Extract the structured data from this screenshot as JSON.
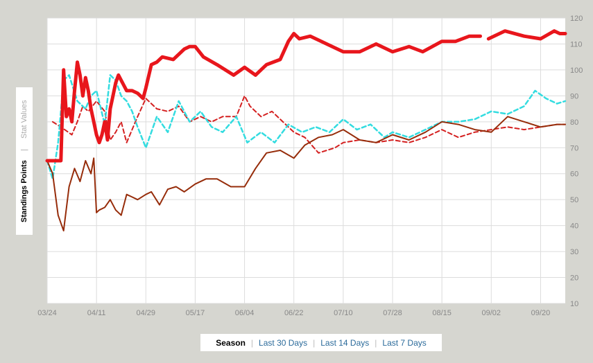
{
  "chart_data": {
    "type": "line",
    "title": "",
    "xlabel": "",
    "ylabel": "Standings Points",
    "ylabel_alt": "Stat Values",
    "ylabel_separator": "|",
    "ylim": [
      10,
      120
    ],
    "yticks": [
      "120",
      "110",
      "100",
      "90",
      "80",
      "70",
      "60",
      "50",
      "40",
      "30",
      "20",
      "10"
    ],
    "xticks": [
      "03/24",
      "04/11",
      "04/29",
      "05/17",
      "06/04",
      "06/22",
      "07/10",
      "07/28",
      "08/15",
      "09/02",
      "09/20"
    ],
    "grid": true,
    "y_axis_side": "right",
    "colors": {
      "thick_red": "#e8161c",
      "dashed_red": "#d42020",
      "dashed_cyan": "#33dce0",
      "brown": "#962c0a"
    },
    "series": [
      {
        "style": "thick_red",
        "x": [
          "03/24",
          "03/29",
          "03/30",
          "03/31",
          "04/01",
          "04/02",
          "04/03",
          "04/04",
          "04/05",
          "04/06",
          "04/07",
          "04/08",
          "04/09",
          "04/10",
          "04/11",
          "04/12",
          "04/13",
          "04/14",
          "04/15",
          "04/16",
          "04/17",
          "04/18",
          "04/19",
          "04/20",
          "04/22",
          "04/24",
          "04/26",
          "04/28",
          "04/29",
          "05/01",
          "05/03",
          "05/05",
          "05/09",
          "05/13",
          "05/15",
          "05/17",
          "05/20",
          "05/25",
          "05/31",
          "06/04",
          "06/08",
          "06/12",
          "06/17",
          "06/20",
          "06/22",
          "06/24",
          "06/28",
          "07/04",
          "07/10",
          "07/16",
          "07/22",
          "07/28",
          "08/03",
          "08/08",
          "08/15",
          "08/20",
          "08/25",
          "08/29",
          "08/30",
          "09/01",
          "09/07",
          "09/14",
          "09/20",
          "09/25",
          "09/27",
          "09/29"
        ],
        "y": [
          65,
          65,
          100,
          82,
          85,
          80,
          92,
          103,
          98,
          90,
          97,
          92,
          85,
          80,
          75,
          72,
          75,
          80,
          73,
          85,
          90,
          95,
          98,
          96,
          92,
          92,
          91,
          89,
          93,
          102,
          103,
          105,
          104,
          108,
          109,
          109,
          105,
          102,
          98,
          101,
          98,
          102,
          104,
          111,
          114,
          112,
          113,
          110,
          107,
          107,
          110,
          107,
          109,
          107,
          111,
          111,
          113,
          113,
          null,
          112,
          115,
          113,
          112,
          115,
          114,
          114
        ]
      },
      {
        "style": "dashed_red",
        "x": [
          "03/26",
          "03/29",
          "04/02",
          "04/04",
          "04/06",
          "04/08",
          "04/11",
          "04/14",
          "04/16",
          "04/18",
          "04/20",
          "04/22",
          "04/26",
          "04/29",
          "05/03",
          "05/07",
          "05/11",
          "05/15",
          "05/19",
          "05/23",
          "05/27",
          "06/01",
          "06/04",
          "06/06",
          "06/10",
          "06/14",
          "06/19",
          "06/22",
          "06/26",
          "07/01",
          "07/07",
          "07/10",
          "07/16",
          "07/22",
          "07/28",
          "08/03",
          "08/09",
          "08/15",
          "08/21",
          "08/27",
          "09/02",
          "09/08",
          "09/14",
          "09/20",
          "09/26",
          "09/29"
        ],
        "y": [
          80,
          78,
          75,
          80,
          86,
          84,
          88,
          84,
          73,
          76,
          80,
          72,
          82,
          89,
          85,
          84,
          86,
          80,
          82,
          80,
          82,
          82,
          90,
          86,
          82,
          84,
          79,
          76,
          74,
          68,
          70,
          72,
          73,
          72,
          73,
          72,
          74,
          77,
          74,
          76,
          77,
          78,
          77,
          78,
          79,
          79
        ]
      },
      {
        "style": "dashed_cyan",
        "x": [
          "03/24",
          "03/26",
          "03/28",
          "03/30",
          "04/01",
          "04/04",
          "04/07",
          "04/09",
          "04/11",
          "04/14",
          "04/16",
          "04/18",
          "04/20",
          "04/22",
          "04/24",
          "04/26",
          "04/29",
          "05/03",
          "05/07",
          "05/11",
          "05/15",
          "05/19",
          "05/23",
          "05/27",
          "06/01",
          "06/05",
          "06/10",
          "06/15",
          "06/20",
          "06/25",
          "06/30",
          "07/05",
          "07/10",
          "07/15",
          "07/20",
          "07/25",
          "07/28",
          "08/03",
          "08/09",
          "08/15",
          "08/21",
          "08/27",
          "09/02",
          "09/08",
          "09/14",
          "09/18",
          "09/22",
          "09/26",
          "09/29"
        ],
        "y": [
          65,
          58,
          72,
          96,
          98,
          88,
          85,
          90,
          92,
          79,
          98,
          96,
          90,
          88,
          84,
          78,
          70,
          82,
          76,
          88,
          80,
          84,
          78,
          76,
          82,
          72,
          76,
          72,
          79,
          76,
          78,
          76,
          81,
          77,
          79,
          74,
          76,
          74,
          77,
          80,
          80,
          81,
          84,
          83,
          86,
          92,
          89,
          87,
          88
        ]
      },
      {
        "style": "brown",
        "x": [
          "03/24",
          "03/26",
          "03/28",
          "03/30",
          "04/01",
          "04/03",
          "04/05",
          "04/07",
          "04/09",
          "04/10",
          "04/11",
          "04/12",
          "04/14",
          "04/16",
          "04/18",
          "04/20",
          "04/22",
          "04/24",
          "04/26",
          "04/29",
          "05/01",
          "05/04",
          "05/07",
          "05/10",
          "05/13",
          "05/17",
          "05/21",
          "05/25",
          "05/30",
          "06/04",
          "06/08",
          "06/12",
          "06/17",
          "06/22",
          "06/26",
          "07/01",
          "07/06",
          "07/10",
          "07/16",
          "07/22",
          "07/28",
          "08/03",
          "08/09",
          "08/15",
          "08/21",
          "08/27",
          "09/02",
          "09/08",
          "09/14",
          "09/20",
          "09/26",
          "09/29"
        ],
        "y": [
          65,
          60,
          44,
          38,
          55,
          62,
          57,
          65,
          60,
          66,
          45,
          46,
          47,
          50,
          46,
          44,
          52,
          51,
          50,
          52,
          53,
          48,
          54,
          55,
          53,
          56,
          58,
          58,
          55,
          55,
          62,
          68,
          69,
          66,
          71,
          74,
          75,
          77,
          73,
          72,
          75,
          73,
          76,
          80,
          79,
          77,
          76,
          82,
          80,
          78,
          79,
          79
        ]
      }
    ]
  },
  "tabs": [
    {
      "label": "Season",
      "active": true
    },
    {
      "label": "Last 30 Days",
      "active": false
    },
    {
      "label": "Last 14 Days",
      "active": false
    },
    {
      "label": "Last 7 Days",
      "active": false
    }
  ]
}
